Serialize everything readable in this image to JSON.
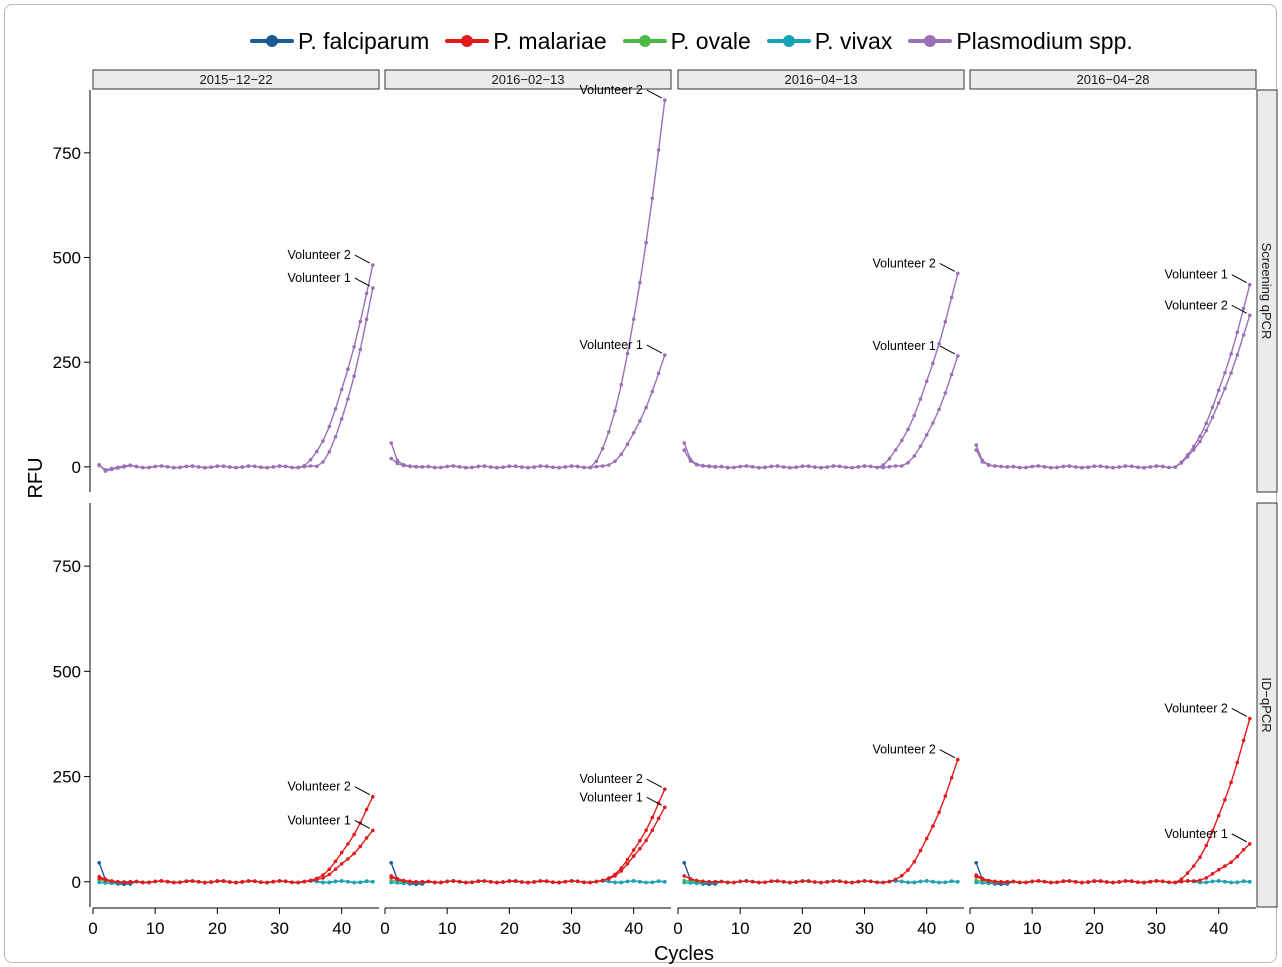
{
  "chart_data": {
    "type": "line",
    "xlabel": "Cycles",
    "ylabel": "RFU",
    "xlim": [
      0,
      46
    ],
    "ylim": [
      -60,
      900
    ],
    "x_ticks": [
      0,
      10,
      20,
      30,
      40
    ],
    "y_ticks": [
      0,
      250,
      500,
      750
    ],
    "legend_position": "top",
    "column_facets": [
      "2015−12−22",
      "2016−02−13",
      "2016−04−13",
      "2016−04−28"
    ],
    "row_facets": [
      "Screening qPCR",
      "ID−qPCR"
    ],
    "legend": [
      {
        "name": "P. falciparum",
        "color": "#1a5a96"
      },
      {
        "name": "P. malariae",
        "color": "#e3191c"
      },
      {
        "name": "P. ovale",
        "color": "#4db848"
      },
      {
        "name": "P. vivax",
        "color": "#17a2b8"
      },
      {
        "name": "Plasmodium spp.",
        "color": "#9b6fb7"
      }
    ],
    "panels": [
      {
        "row": 0,
        "col": 0,
        "series": [
          {
            "species": "Plasmodium spp.",
            "label": "Volunteer 2",
            "onset": 33.5,
            "end": 482,
            "start": 5,
            "early": [
              5,
              -10,
              -6,
              -3,
              0,
              3
            ]
          },
          {
            "species": "Plasmodium spp.",
            "label": "Volunteer 1",
            "onset": 35.8,
            "end": 427,
            "start": 3,
            "early": [
              3,
              -7,
              -4,
              -1,
              2,
              4
            ]
          }
        ]
      },
      {
        "row": 0,
        "col": 1,
        "series": [
          {
            "species": "Plasmodium spp.",
            "label": "Volunteer 2",
            "onset": 33.0,
            "end": 876,
            "start": 57,
            "early": [
              57,
              15,
              5,
              2,
              1,
              0
            ]
          },
          {
            "species": "Plasmodium spp.",
            "label": "Volunteer 1",
            "onset": 35.2,
            "end": 267,
            "start": 20,
            "early": [
              20,
              8,
              3,
              1,
              0,
              0
            ]
          }
        ]
      },
      {
        "row": 0,
        "col": 2,
        "series": [
          {
            "species": "Plasmodium spp.",
            "label": "Volunteer 2",
            "onset": 32.0,
            "end": 462,
            "start": 57,
            "early": [
              57,
              18,
              6,
              3,
              2,
              1
            ]
          },
          {
            "species": "Plasmodium spp.",
            "label": "Volunteer 1",
            "onset": 35.5,
            "end": 265,
            "start": 40,
            "early": [
              40,
              14,
              5,
              2,
              1,
              0
            ]
          }
        ]
      },
      {
        "row": 0,
        "col": 3,
        "series": [
          {
            "species": "Plasmodium spp.",
            "label": "Volunteer 1",
            "onset": 32.6,
            "end": 435,
            "start": 52,
            "early": [
              52,
              15,
              5,
              2,
              1,
              0
            ]
          },
          {
            "species": "Plasmodium spp.",
            "label": "Volunteer 2",
            "onset": 32.6,
            "end": 362,
            "start": 40,
            "early": [
              40,
              12,
              4,
              2,
              1,
              0
            ]
          }
        ]
      },
      {
        "row": 1,
        "col": 0,
        "series": [
          {
            "species": "P. malariae",
            "label": "Volunteer 2",
            "onset": 34.5,
            "end": 202,
            "start": 12,
            "early": [
              12,
              6,
              2,
              0,
              -2,
              -1
            ]
          },
          {
            "species": "P. malariae",
            "label": "Volunteer 1",
            "onset": 34.5,
            "end": 122,
            "start": 8,
            "early": [
              8,
              4,
              1,
              0,
              -1,
              0
            ]
          }
        ]
      },
      {
        "row": 1,
        "col": 1,
        "series": [
          {
            "species": "P. malariae",
            "label": "Volunteer 2",
            "onset": 34.5,
            "end": 220,
            "start": 14,
            "early": [
              14,
              7,
              3,
              1,
              0,
              0
            ]
          },
          {
            "species": "P. malariae",
            "label": "Volunteer 1",
            "onset": 34.5,
            "end": 177,
            "start": 10,
            "early": [
              10,
              5,
              2,
              0,
              -1,
              0
            ]
          }
        ]
      },
      {
        "row": 1,
        "col": 2,
        "series": [
          {
            "species": "P. malariae",
            "label": "Volunteer 2",
            "onset": 34.2,
            "end": 290,
            "start": 14,
            "early": [
              14,
              7,
              3,
              1,
              0,
              0
            ]
          }
        ]
      },
      {
        "row": 1,
        "col": 3,
        "series": [
          {
            "species": "P. malariae",
            "label": "Volunteer 2",
            "onset": 33.0,
            "end": 388,
            "start": 16,
            "early": [
              16,
              8,
              3,
              1,
              0,
              0
            ]
          },
          {
            "species": "P. malariae",
            "label": "Volunteer 1",
            "onset": 35.2,
            "end": 90,
            "start": 12,
            "early": [
              12,
              6,
              2,
              0,
              -1,
              0
            ]
          }
        ]
      }
    ],
    "baseline_series": [
      {
        "species": "P. falciparum",
        "start": 45,
        "early": [
          45,
          5,
          -3,
          -5,
          -6,
          -5
        ]
      },
      {
        "species": "P. ovale",
        "start": 3,
        "early": [
          3,
          1,
          0,
          -1,
          0,
          0
        ]
      },
      {
        "species": "P. vivax",
        "start": -2,
        "early": [
          -2,
          -3,
          -4,
          -3,
          -2,
          -2
        ]
      }
    ]
  }
}
